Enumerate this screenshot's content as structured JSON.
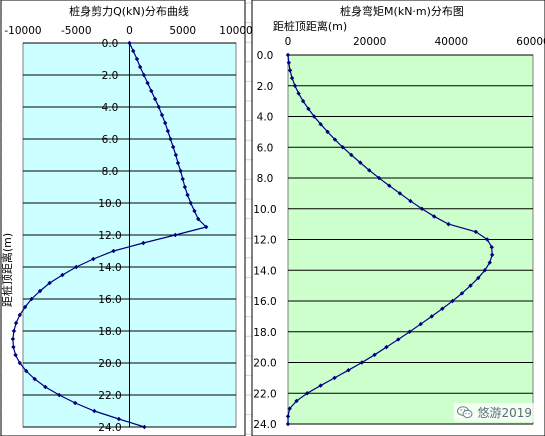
{
  "chart_data": [
    {
      "type": "line",
      "orientation": "depth-down",
      "title": "桩身剪力Q(kN)分布曲线",
      "xlabel": "",
      "ylabel": "距桩顶距离(m)",
      "xlim": [
        -10000,
        10000
      ],
      "xticks": [
        -10000,
        -5000,
        0,
        5000,
        10000
      ],
      "ylim": [
        0,
        24
      ],
      "yticks": [
        "0.0",
        "2.0",
        "4.0",
        "6.0",
        "8.0",
        "10.0",
        "12.0",
        "14.0",
        "16.0",
        "18.0",
        "20.0",
        "22.0",
        "24.0"
      ],
      "plot_background": "#ccffff",
      "line_color": "#000080",
      "grid": "horizontal",
      "series": [
        {
          "depth": [
            0,
            0.5,
            1,
            1.5,
            2,
            2.5,
            3,
            3.5,
            4,
            4.5,
            5,
            5.5,
            6,
            6.5,
            7,
            7.5,
            8,
            8.5,
            9,
            9.5,
            10,
            10.5,
            11,
            11.5,
            12,
            12.5,
            13,
            13.5,
            14,
            14.5,
            15,
            15.5,
            16,
            16.5,
            17,
            17.5,
            18,
            18.5,
            19,
            19.5,
            20,
            20.5,
            21,
            21.5,
            22,
            22.5,
            23,
            23.5,
            24
          ],
          "value": [
            0,
            350,
            700,
            1000,
            1350,
            1700,
            2050,
            2400,
            2750,
            3050,
            3350,
            3600,
            3850,
            4100,
            4350,
            4550,
            4800,
            5000,
            5200,
            5450,
            5750,
            6100,
            6450,
            7200,
            4300,
            1300,
            -1500,
            -3400,
            -5000,
            -6300,
            -7500,
            -8400,
            -9200,
            -9800,
            -10300,
            -10650,
            -10850,
            -10950,
            -10900,
            -10700,
            -10300,
            -9700,
            -8900,
            -7900,
            -6600,
            -5100,
            -3300,
            -1000,
            1400
          ]
        }
      ]
    },
    {
      "type": "line",
      "orientation": "depth-down",
      "title": "桩身弯矩M(kN·m)分布图",
      "xlabel": "",
      "ylabel": "距桩顶距离(m)",
      "xlim": [
        0,
        60000
      ],
      "xticks": [
        0,
        20000,
        40000,
        60000
      ],
      "ylim": [
        0,
        24
      ],
      "yticks": [
        "0.0",
        "2.0",
        "4.0",
        "6.0",
        "8.0",
        "10.0",
        "12.0",
        "14.0",
        "16.0",
        "18.0",
        "20.0",
        "22.0",
        "24.0"
      ],
      "plot_background": "#ccffcc",
      "line_color": "#000080",
      "grid": "horizontal",
      "series": [
        {
          "depth": [
            0,
            0.5,
            1,
            1.5,
            2,
            2.5,
            3,
            3.5,
            4,
            4.5,
            5,
            5.5,
            6,
            6.5,
            7,
            7.5,
            8,
            8.5,
            9,
            9.5,
            10,
            10.5,
            11,
            11.5,
            12,
            12.5,
            13,
            13.5,
            14,
            14.5,
            15,
            15.5,
            16,
            16.5,
            17,
            17.5,
            18,
            18.5,
            19,
            19.5,
            20,
            20.5,
            21,
            21.5,
            22,
            22.5,
            23,
            23.5,
            24
          ],
          "value": [
            0,
            200,
            500,
            1000,
            1700,
            2600,
            3700,
            5000,
            6400,
            8000,
            9700,
            11500,
            13400,
            15500,
            17700,
            19900,
            22300,
            24800,
            27400,
            30000,
            32800,
            35800,
            39300,
            46000,
            48800,
            49900,
            50000,
            49400,
            48200,
            46600,
            44700,
            42600,
            40300,
            37800,
            35200,
            32500,
            29800,
            27000,
            24100,
            21200,
            18100,
            14800,
            11400,
            8000,
            4700,
            2100,
            400,
            0,
            0
          ]
        }
      ]
    }
  ],
  "watermark": {
    "icon": "wechat-icon",
    "text": "悠游2019"
  }
}
